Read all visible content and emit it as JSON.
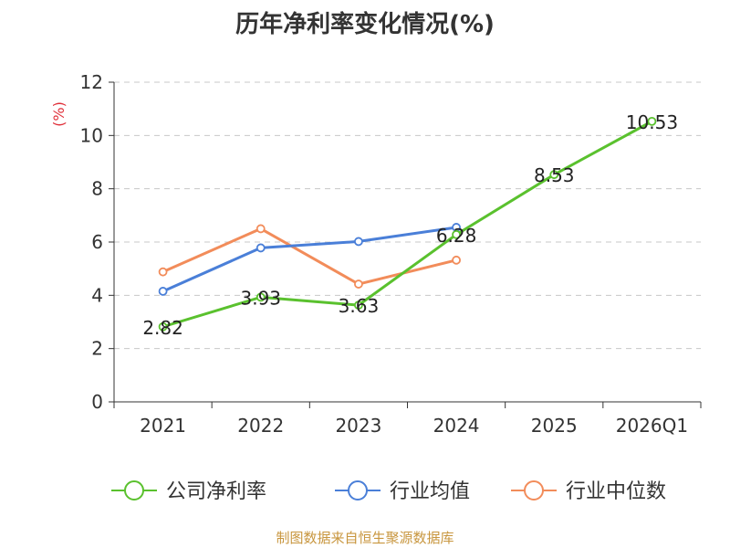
{
  "chart_data": {
    "type": "line",
    "title": "历年净利率变化情况(%)",
    "ylabel": "(%)",
    "ylim": [
      0,
      12
    ],
    "yticks": [
      0,
      2,
      4,
      6,
      8,
      10,
      12
    ],
    "grid": true,
    "legend_position": "bottom",
    "categories": [
      "2021",
      "2022",
      "2023",
      "2024",
      "2025",
      "2026Q1"
    ],
    "series": [
      {
        "name": "公司净利率",
        "color": "#5ac12e",
        "values": [
          2.82,
          3.93,
          3.63,
          6.28,
          8.53,
          10.53
        ],
        "labels": [
          "2.82",
          "3.93",
          "3.63",
          "6.28",
          "8.53",
          "10.53"
        ]
      },
      {
        "name": "行业均值",
        "color": "#4a7fd8",
        "values": [
          4.15,
          5.78,
          6.02,
          6.55,
          null,
          null
        ]
      },
      {
        "name": "行业中位数",
        "color": "#f28c5a",
        "values": [
          4.88,
          6.5,
          4.42,
          5.32,
          null,
          null
        ]
      }
    ]
  },
  "source": "制图数据来自恒生聚源数据库"
}
